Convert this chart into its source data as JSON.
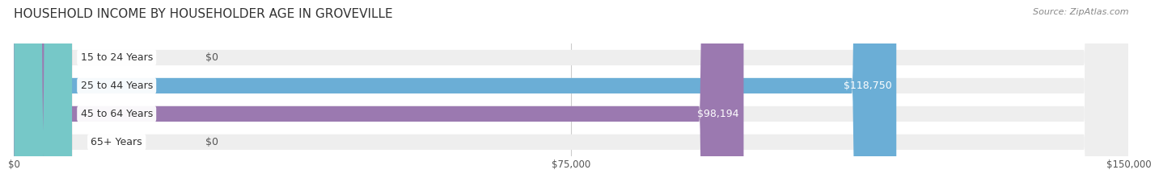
{
  "title": "HOUSEHOLD INCOME BY HOUSEHOLDER AGE IN GROVEVILLE",
  "source": "Source: ZipAtlas.com",
  "categories": [
    "15 to 24 Years",
    "25 to 44 Years",
    "45 to 64 Years",
    "65+ Years"
  ],
  "values": [
    0,
    118750,
    98194,
    0
  ],
  "bar_colors": [
    "#f08080",
    "#6baed6",
    "#9b79b0",
    "#76c8c8"
  ],
  "bar_bg_color": "#eeeeee",
  "max_value": 150000,
  "xticks": [
    0,
    75000,
    150000
  ],
  "xtick_labels": [
    "$0",
    "$75,000",
    "$150,000"
  ],
  "title_fontsize": 11,
  "source_fontsize": 8,
  "bar_label_fontsize": 9,
  "category_fontsize": 9,
  "background_color": "#ffffff",
  "bar_height": 0.55,
  "grid_color": "#cccccc"
}
